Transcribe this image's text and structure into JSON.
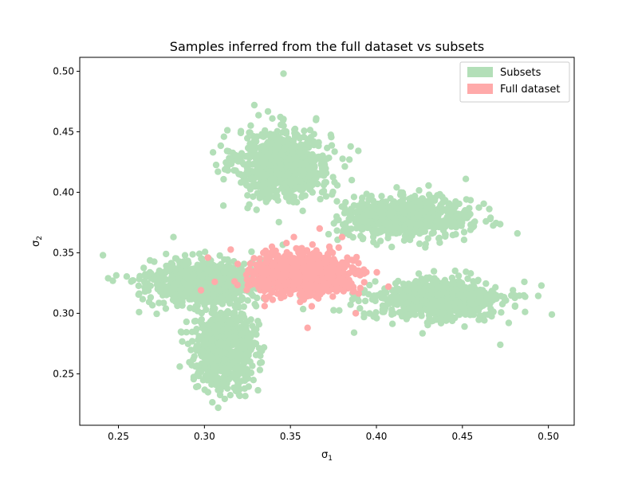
{
  "chart_data": {
    "type": "scatter",
    "title": "Samples inferred from the full dataset vs subsets",
    "xlabel": "σ1",
    "ylabel": "σ2",
    "xlim": [
      0.2275,
      0.515
    ],
    "ylim": [
      0.2075,
      0.5115
    ],
    "xticks": [
      "0.25",
      "0.30",
      "0.35",
      "0.40",
      "0.45",
      "0.50"
    ],
    "yticks": [
      "0.25",
      "0.30",
      "0.35",
      "0.40",
      "0.45",
      "0.50"
    ],
    "grid": false,
    "legend_position": "upper right",
    "series": [
      {
        "name": "Subsets",
        "color": "#b3dfb8",
        "clusters": [
          {
            "center": [
              0.346,
              0.423
            ],
            "spread": [
              0.0135,
              0.0145
            ],
            "count": 750
          },
          {
            "center": [
              0.418,
              0.379
            ],
            "spread": [
              0.0185,
              0.008
            ],
            "count": 750
          },
          {
            "center": [
              0.436,
              0.311
            ],
            "spread": [
              0.019,
              0.0085
            ],
            "count": 750
          },
          {
            "center": [
              0.298,
              0.326
            ],
            "spread": [
              0.0155,
              0.009
            ],
            "count": 700
          },
          {
            "center": [
              0.312,
              0.271
            ],
            "spread": [
              0.009,
              0.016
            ],
            "count": 700
          }
        ],
        "outliers": [
          [
            0.346,
            0.498
          ],
          [
            0.241,
            0.348
          ],
          [
            0.502,
            0.299
          ],
          [
            0.482,
            0.366
          ],
          [
            0.282,
            0.363
          ],
          [
            0.472,
            0.274
          ],
          [
            0.387,
            0.284
          ],
          [
            0.308,
            0.222
          ],
          [
            0.311,
            0.389
          ],
          [
            0.452,
            0.411
          ],
          [
            0.486,
            0.326
          ],
          [
            0.244,
            0.329
          ],
          [
            0.258,
            0.327
          ],
          [
            0.262,
            0.301
          ],
          [
            0.329,
            0.472
          ],
          [
            0.365,
            0.461
          ],
          [
            0.305,
            0.433
          ]
        ]
      },
      {
        "name": "Full dataset",
        "color": "#ffaaaa",
        "clusters": [
          {
            "center": [
              0.357,
              0.333
            ],
            "spread": [
              0.014,
              0.008
            ],
            "count": 900
          }
        ],
        "outliers": [
          [
            0.302,
            0.346
          ],
          [
            0.36,
            0.288
          ],
          [
            0.367,
            0.37
          ],
          [
            0.352,
            0.363
          ],
          [
            0.388,
            0.3
          ],
          [
            0.407,
            0.322
          ],
          [
            0.298,
            0.319
          ],
          [
            0.38,
            0.363
          ],
          [
            0.335,
            0.306
          ],
          [
            0.306,
            0.326
          ]
        ]
      }
    ]
  }
}
